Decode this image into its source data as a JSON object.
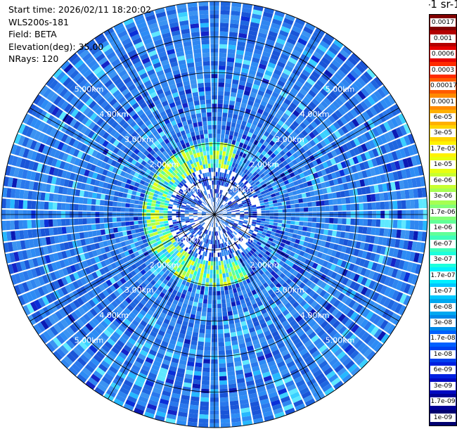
{
  "info": {
    "start_time": "Start time: 2026/02/11 18:20:02",
    "instrument": "WLS200s-181",
    "field": "Field: BETA",
    "elevation": "Elevation(deg): 35.00",
    "nrays": "NRays: 120"
  },
  "colorbar": {
    "title": "-1 sr-1",
    "levels": [
      "0.0017",
      "0.001",
      "0.0006",
      "0.0003",
      "0.00017",
      "0.0001",
      "6e-05",
      "3e-05",
      "1.7e-05",
      "1e-05",
      "6e-06",
      "3e-06",
      "1.7e-06",
      "1e-06",
      "6e-07",
      "3e-07",
      "1.7e-07",
      "1e-07",
      "6e-08",
      "3e-08",
      "1.7e-08",
      "1e-08",
      "6e-09",
      "3e-09",
      "1.7e-09",
      "1e-09"
    ],
    "colors": [
      "#800000",
      "#b30000",
      "#e60000",
      "#ff2a00",
      "#ff5a00",
      "#ff8a00",
      "#ffb000",
      "#ffd400",
      "#fff200",
      "#e8ff10",
      "#c8ff30",
      "#a6ff52",
      "#82ff76",
      "#60ff98",
      "#3effba",
      "#1cffdc",
      "#00f0ff",
      "#00c8ff",
      "#00a8f0",
      "#0088e8",
      "#0060ff",
      "#0040f0",
      "#0020e0",
      "#0008c0",
      "#000096",
      "#000070"
    ]
  },
  "chart_data": {
    "type": "ppi_scan",
    "field": "BETA",
    "elevation_deg": 35.0,
    "n_rays": 120,
    "range_rings": [
      {
        "label": "1.00km",
        "km": 1.0
      },
      {
        "label": "2.00km",
        "km": 2.0
      },
      {
        "label": "3.00km",
        "km": 3.0
      },
      {
        "label": "4.00km",
        "km": 4.0
      },
      {
        "label": "5.00km",
        "km": 5.0
      }
    ],
    "max_range_km": 6.0,
    "azimuth_lines_deg": [
      0,
      30,
      60,
      90,
      120,
      150,
      180,
      210,
      240,
      270,
      300,
      330
    ],
    "color_scale": "log",
    "min_value": 1e-09,
    "max_value": 0.0017
  }
}
